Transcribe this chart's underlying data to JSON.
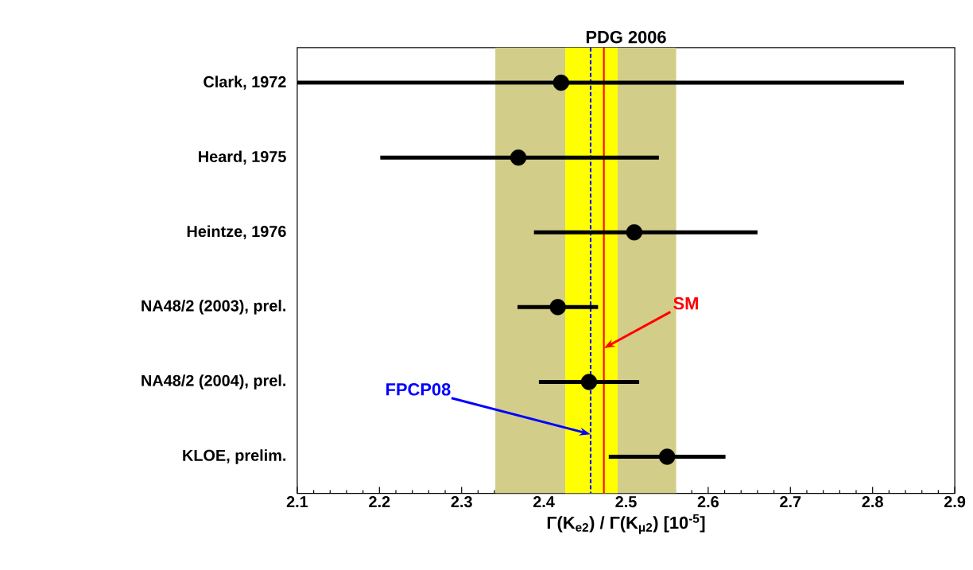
{
  "chart_data": {
    "type": "scatter",
    "orientation": "horizontal",
    "title": "PDG 2006",
    "xlabel": "Γ(K$_{e2}$) / Γ(K$_{μ2}$)  [10$^{-5}$]",
    "categories": [
      "Clark, 1972",
      "Heard, 1975",
      "Heintze, 1976",
      "NA48/2 (2003), prel.",
      "NA48/2 (2004), prel.",
      "KLOE, prelim."
    ],
    "values": [
      2.421,
      2.369,
      2.51,
      2.417,
      2.455,
      2.55
    ],
    "errors": [
      [
        2.1,
        2.838
      ],
      [
        2.201,
        2.54
      ],
      [
        2.388,
        2.66
      ],
      0.049,
      0.061,
      0.071
    ],
    "color": "#000000",
    "marker": "circle",
    "xlim": [
      2.1,
      2.9
    ],
    "xticks": [
      2.1,
      2.2,
      2.3,
      2.4,
      2.5,
      2.6,
      2.7,
      2.8,
      2.9
    ],
    "bands": [
      {
        "axis": "x",
        "from": 2.341,
        "to": 2.561,
        "color": "#d2cd88"
      },
      {
        "axis": "x",
        "from": 2.426,
        "to": 2.49,
        "color": "#ffff00"
      }
    ],
    "ref_lines": [
      {
        "axis": "x",
        "value": 2.473,
        "label": "SM",
        "color": "#ff0000",
        "line_style": "solid"
      },
      {
        "axis": "x",
        "value": 2.457,
        "label": "FPCP08",
        "color": "#0000ff",
        "line_style": "dashed"
      }
    ]
  }
}
